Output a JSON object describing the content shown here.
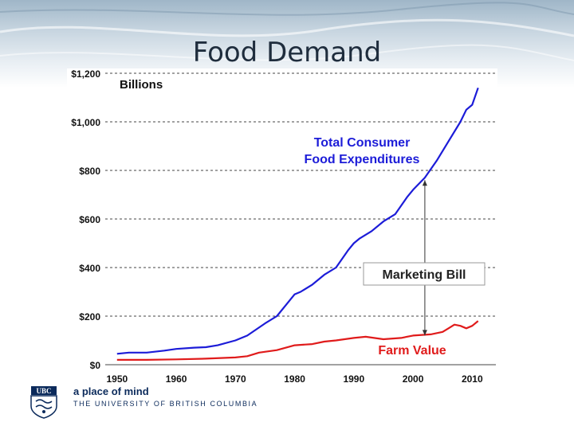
{
  "slide": {
    "title": "Food Demand"
  },
  "footer": {
    "crest_text": "UBC",
    "tagline": "a place of mind",
    "university": "THE UNIVERSITY OF BRITISH COLUMBIA"
  },
  "colors": {
    "total": "#1c1cd8",
    "farm": "#e01b1b",
    "grid": "#444444"
  },
  "chart_data": {
    "type": "line",
    "title": "",
    "ylabel": "Billions",
    "xlabel": "",
    "xlim": [
      1950,
      2012
    ],
    "ylim": [
      0,
      1200
    ],
    "x_ticks": [
      1950,
      1960,
      1970,
      1980,
      1990,
      2000,
      2010
    ],
    "y_ticks": [
      0,
      200,
      400,
      600,
      800,
      1000,
      1200
    ],
    "y_tick_labels": [
      "$0",
      "$200",
      "$400",
      "$600",
      "$800",
      "$1,000",
      "$1,200"
    ],
    "x_tick_labels": [
      "1950",
      "1960",
      "1970",
      "1980",
      "1990",
      "2000",
      "2010"
    ],
    "grid": "horizontal-dashed",
    "series": [
      {
        "name": "Total Consumer Food Expenditures",
        "label_lines": [
          "Total Consumer",
          "Food Expenditures"
        ],
        "x": [
          1950,
          1952,
          1955,
          1958,
          1960,
          1963,
          1965,
          1967,
          1970,
          1972,
          1975,
          1977,
          1979,
          1980,
          1981,
          1983,
          1985,
          1987,
          1989,
          1990,
          1991,
          1993,
          1995,
          1997,
          1999,
          2000,
          2002,
          2004,
          2006,
          2008,
          2009,
          2010,
          2011
        ],
        "values": [
          45,
          50,
          50,
          58,
          65,
          70,
          72,
          80,
          100,
          120,
          170,
          200,
          260,
          290,
          300,
          330,
          370,
          400,
          470,
          500,
          520,
          550,
          590,
          620,
          690,
          720,
          770,
          840,
          920,
          1000,
          1050,
          1070,
          1140
        ]
      },
      {
        "name": "Farm Value",
        "label_lines": [
          "Farm Value"
        ],
        "x": [
          1950,
          1955,
          1960,
          1965,
          1970,
          1972,
          1974,
          1977,
          1980,
          1983,
          1985,
          1987,
          1990,
          1992,
          1995,
          1998,
          2000,
          2003,
          2005,
          2006,
          2007,
          2008,
          2009,
          2010,
          2011
        ],
        "values": [
          20,
          20,
          22,
          25,
          30,
          35,
          50,
          60,
          80,
          85,
          95,
          100,
          110,
          115,
          105,
          110,
          120,
          125,
          135,
          150,
          165,
          160,
          150,
          160,
          180
        ]
      }
    ],
    "annotations": [
      {
        "text": "Marketing Bill",
        "x": 2002,
        "from": 120,
        "to": 760
      }
    ]
  }
}
